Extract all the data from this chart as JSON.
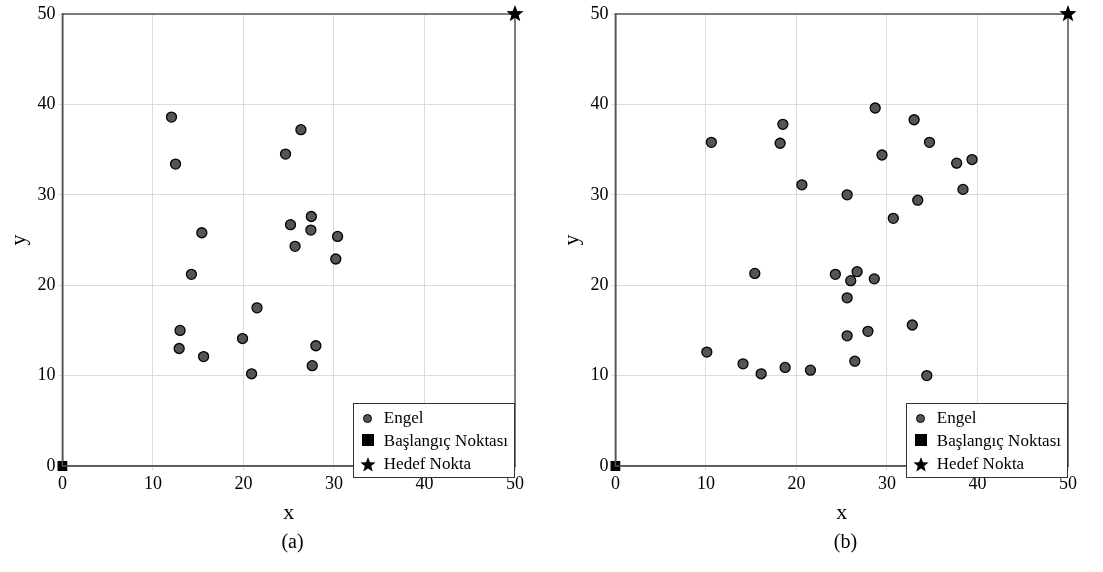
{
  "chart_data": [
    {
      "type": "scatter",
      "xlabel": "x",
      "ylabel": "y",
      "annotations": [
        "(a)"
      ],
      "xlim": [
        0,
        50
      ],
      "ylim": [
        0,
        50
      ],
      "xticks": [
        0,
        10,
        20,
        30,
        40,
        50
      ],
      "yticks": [
        0,
        10,
        20,
        30,
        40,
        50
      ],
      "grid": true,
      "legend": "bottom right",
      "series": [
        {
          "name": "Engel",
          "color": "#555555",
          "marker": "circle",
          "x": [
            12.05,
            12.5,
            26.35,
            24.65,
            15.4,
            25.2,
            27.5,
            27.45,
            25.7,
            30.4,
            30.2,
            14.25,
            21.5,
            13.0,
            12.9,
            15.6,
            19.9,
            20.9,
            28.0,
            27.6
          ],
          "values": [
            38.6,
            33.4,
            37.2,
            34.5,
            25.8,
            26.7,
            27.6,
            26.1,
            24.3,
            25.4,
            22.9,
            21.2,
            17.5,
            15.0,
            13.0,
            12.1,
            14.1,
            10.2,
            13.3,
            11.1
          ]
        },
        {
          "name": "Başlangıç Noktası",
          "color": "#000000",
          "marker": "square",
          "x": [
            0
          ],
          "values": [
            0
          ]
        },
        {
          "name": "Hedef Nokta",
          "color": "#000000",
          "marker": "star",
          "x": [
            50
          ],
          "values": [
            50
          ]
        }
      ]
    },
    {
      "type": "scatter",
      "xlabel": "x",
      "ylabel": "y",
      "annotations": [
        "(b)"
      ],
      "xlim": [
        0,
        50
      ],
      "ylim": [
        0,
        50
      ],
      "xticks": [
        0,
        10,
        20,
        30,
        40,
        50
      ],
      "yticks": [
        0,
        10,
        20,
        30,
        40,
        50
      ],
      "grid": true,
      "legend": "bottom right",
      "series": [
        {
          "name": "Engel",
          "color": "#555555",
          "marker": "circle",
          "x": [
            10.6,
            18.5,
            18.2,
            28.7,
            33.0,
            34.7,
            29.45,
            37.7,
            39.4,
            38.4,
            33.4,
            30.7,
            20.6,
            25.6,
            15.4,
            24.3,
            26.7,
            26.0,
            28.6,
            25.6,
            27.9,
            32.8,
            25.6,
            26.45,
            10.1,
            14.1,
            16.1,
            18.75,
            21.55,
            34.4
          ],
          "values": [
            35.8,
            37.8,
            35.7,
            39.6,
            38.3,
            35.8,
            34.4,
            33.5,
            33.9,
            30.6,
            29.4,
            27.4,
            31.1,
            30.0,
            21.3,
            21.2,
            21.5,
            20.5,
            20.7,
            18.6,
            14.9,
            15.6,
            14.4,
            11.6,
            12.6,
            11.3,
            10.2,
            10.9,
            10.6,
            10.0
          ]
        },
        {
          "name": "Başlangıç Noktası",
          "color": "#000000",
          "marker": "square",
          "x": [
            0
          ],
          "values": [
            0
          ]
        },
        {
          "name": "Hedef Nokta",
          "color": "#000000",
          "marker": "star",
          "x": [
            50
          ],
          "values": [
            50
          ]
        }
      ]
    }
  ]
}
